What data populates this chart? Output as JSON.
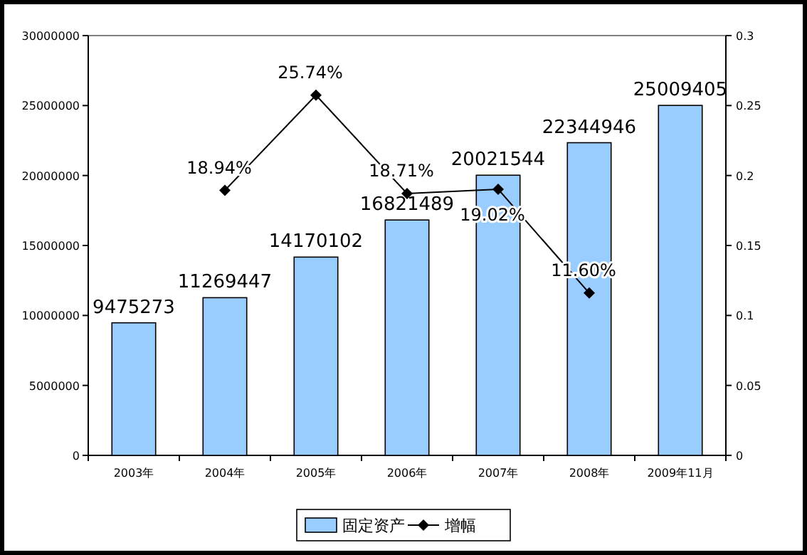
{
  "chart_data": {
    "type": "bar",
    "categories": [
      "2003年",
      "2004年",
      "2005年",
      "2006年",
      "2007年",
      "2008年",
      "2009年11月"
    ],
    "series": [
      {
        "name": "固定资产",
        "color": "#99ccff",
        "values": [
          9475273,
          11269447,
          14170102,
          16821489,
          20021544,
          22344946,
          25009405
        ],
        "value_labels": [
          "9475273",
          "11269447",
          "14170102",
          "16821489",
          "20021544",
          "22344946",
          "25009405"
        ]
      },
      {
        "name": "增幅",
        "type": "line",
        "axis": "y2",
        "color": "#000000",
        "values": [
          null,
          0.1894,
          0.2574,
          0.1871,
          0.1902,
          0.116,
          null
        ],
        "value_labels": [
          null,
          "18.94%",
          "25.74%",
          "18.71%",
          "19.02%",
          "11.60%",
          null
        ]
      }
    ],
    "ylim": [
      0,
      30000000
    ],
    "yticks": [
      0,
      5000000,
      10000000,
      15000000,
      20000000,
      25000000,
      30000000
    ],
    "y2lim": [
      0,
      0.3
    ],
    "y2ticks": [
      0,
      0.05,
      0.1,
      0.15,
      0.2,
      0.25,
      0.3
    ],
    "marker": "diamond",
    "legend": "bottom",
    "grid": false
  }
}
